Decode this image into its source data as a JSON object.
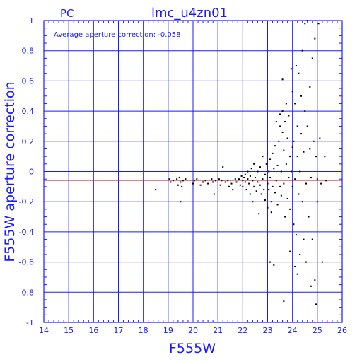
{
  "chart_data": {
    "type": "scatter",
    "title": "lmc_u4zn01",
    "corner_label": "PC",
    "annotation": "Average aperture correction:  -0.058",
    "xlabel": "F555W",
    "ylabel": "F555W aperture correction",
    "xlim": [
      14,
      26
    ],
    "ylim": [
      -1,
      1
    ],
    "x_ticks": [
      14,
      15,
      16,
      17,
      18,
      19,
      20,
      21,
      22,
      23,
      24,
      25,
      26
    ],
    "y_ticks": [
      -1,
      -0.8,
      -0.6,
      -0.4,
      -0.2,
      0,
      0.2,
      0.4,
      0.6,
      0.8,
      1
    ],
    "y_tick_labels": [
      "-1",
      "-0.8",
      "-0.6",
      "-0.4",
      "-0.2",
      "0",
      "0.2",
      "0.4",
      "0.6",
      "0.8",
      "1"
    ],
    "grid": true,
    "reference_line": {
      "y": -0.058,
      "color": "#dd0000"
    },
    "colors": {
      "axes": "#1a1aff",
      "grid": "#1a1aff",
      "points": "#000000",
      "reference": "#dd0000"
    },
    "points": [
      [
        18.5,
        -0.12
      ],
      [
        19.05,
        -0.05
      ],
      [
        19.1,
        -0.07
      ],
      [
        19.2,
        -0.06
      ],
      [
        19.35,
        -0.05
      ],
      [
        19.4,
        -0.09
      ],
      [
        19.45,
        -0.04
      ],
      [
        19.5,
        -0.07
      ],
      [
        19.5,
        -0.2
      ],
      [
        19.55,
        -0.1
      ],
      [
        19.6,
        -0.06
      ],
      [
        19.7,
        -0.05
      ],
      [
        20.0,
        -0.08
      ],
      [
        20.05,
        -0.06
      ],
      [
        20.15,
        -0.05
      ],
      [
        20.3,
        -0.09
      ],
      [
        20.4,
        -0.07
      ],
      [
        20.5,
        -0.06
      ],
      [
        20.6,
        -0.08
      ],
      [
        20.75,
        -0.05
      ],
      [
        20.8,
        -0.07
      ],
      [
        20.85,
        -0.15
      ],
      [
        20.9,
        -0.06
      ],
      [
        21.05,
        -0.05
      ],
      [
        21.1,
        -0.09
      ],
      [
        21.15,
        -0.06
      ],
      [
        21.2,
        0.03
      ],
      [
        21.3,
        -0.07
      ],
      [
        21.4,
        -0.06
      ],
      [
        21.45,
        -0.1
      ],
      [
        21.55,
        -0.08
      ],
      [
        21.6,
        -0.12
      ],
      [
        21.7,
        -0.05
      ],
      [
        21.75,
        -0.07
      ],
      [
        21.85,
        -0.05
      ],
      [
        21.9,
        -0.09
      ],
      [
        21.95,
        -0.03
      ],
      [
        22.0,
        -0.06
      ],
      [
        22.0,
        -0.1
      ],
      [
        22.05,
        -0.04
      ],
      [
        22.1,
        -0.07
      ],
      [
        22.1,
        -0.02
      ],
      [
        22.15,
        -0.12
      ],
      [
        22.2,
        -0.05
      ],
      [
        22.2,
        0.0
      ],
      [
        22.25,
        -0.08
      ],
      [
        22.3,
        -0.03
      ],
      [
        22.3,
        -0.15
      ],
      [
        22.35,
        0.02
      ],
      [
        22.4,
        -0.06
      ],
      [
        22.4,
        -0.2
      ],
      [
        22.45,
        -0.1
      ],
      [
        22.45,
        0.05
      ],
      [
        22.5,
        -0.04
      ],
      [
        22.55,
        -0.13
      ],
      [
        22.6,
        0.0
      ],
      [
        22.6,
        -0.07
      ],
      [
        22.65,
        -0.28
      ],
      [
        22.7,
        -0.09
      ],
      [
        22.7,
        0.03
      ],
      [
        22.75,
        -0.15
      ],
      [
        22.8,
        -0.05
      ],
      [
        22.8,
        0.1
      ],
      [
        22.85,
        -0.12
      ],
      [
        22.9,
        -0.02
      ],
      [
        22.9,
        -0.19
      ],
      [
        22.95,
        0.05
      ],
      [
        23.0,
        -0.08
      ],
      [
        23.0,
        -0.24
      ],
      [
        23.05,
        0.0
      ],
      [
        23.05,
        -0.12
      ],
      [
        23.1,
        -0.04
      ],
      [
        23.1,
        0.08
      ],
      [
        23.15,
        -0.2
      ],
      [
        23.15,
        -0.27
      ],
      [
        23.2,
        -0.1
      ],
      [
        23.2,
        0.12
      ],
      [
        23.25,
        0.02
      ],
      [
        23.3,
        -0.14
      ],
      [
        23.3,
        0.17
      ],
      [
        23.35,
        -0.06
      ],
      [
        23.35,
        0.33
      ],
      [
        23.4,
        0.04
      ],
      [
        23.4,
        -0.22
      ],
      [
        23.45,
        0.2
      ],
      [
        23.5,
        -0.1
      ],
      [
        23.5,
        0.3
      ],
      [
        23.5,
        0.38
      ],
      [
        23.55,
        0.0
      ],
      [
        23.55,
        -0.16
      ],
      [
        23.6,
        0.26
      ],
      [
        23.6,
        0.4
      ],
      [
        23.6,
        0.61
      ],
      [
        23.65,
        -0.08
      ],
      [
        23.65,
        0.14
      ],
      [
        23.7,
        0.33
      ],
      [
        23.7,
        -0.3
      ],
      [
        23.75,
        0.05
      ],
      [
        23.75,
        0.45
      ],
      [
        23.8,
        -0.18
      ],
      [
        23.8,
        0.22
      ],
      [
        23.85,
        0.37
      ],
      [
        23.85,
        -0.04
      ],
      [
        23.9,
        0.1
      ],
      [
        23.9,
        -0.25
      ],
      [
        23.95,
        0.68
      ],
      [
        23.95,
        0.0
      ],
      [
        24.0,
        0.16
      ],
      [
        24.0,
        -0.1
      ],
      [
        24.0,
        0.53
      ],
      [
        24.05,
        -0.35
      ],
      [
        24.05,
        0.2
      ],
      [
        24.1,
        0.45
      ],
      [
        24.1,
        -0.05
      ],
      [
        24.15,
        0.7
      ],
      [
        24.15,
        -0.42
      ],
      [
        24.2,
        0.1
      ],
      [
        24.2,
        0.3
      ],
      [
        24.25,
        -0.15
      ],
      [
        24.25,
        0.65
      ],
      [
        24.3,
        0.0
      ],
      [
        24.3,
        -0.55
      ],
      [
        24.35,
        0.5
      ],
      [
        24.35,
        0.25
      ],
      [
        24.4,
        -0.2
      ],
      [
        24.4,
        0.8
      ],
      [
        24.45,
        0.13
      ],
      [
        24.45,
        -0.45
      ],
      [
        24.5,
        0.4
      ],
      [
        24.5,
        0.98
      ],
      [
        24.55,
        -0.08
      ],
      [
        24.55,
        -0.6
      ],
      [
        24.6,
        0.3
      ],
      [
        24.6,
        1.0
      ],
      [
        24.65,
        -0.3
      ],
      [
        24.7,
        0.56
      ],
      [
        24.7,
        0.15
      ],
      [
        24.75,
        -0.04
      ],
      [
        24.8,
        0.75
      ],
      [
        24.8,
        -0.45
      ],
      [
        24.85,
        0.2
      ],
      [
        24.9,
        -0.72
      ],
      [
        24.9,
        0.88
      ],
      [
        24.95,
        0.1
      ],
      [
        25.0,
        -0.05
      ],
      [
        25.0,
        -0.2
      ],
      [
        25.05,
        0.98
      ],
      [
        25.1,
        0.22
      ],
      [
        25.15,
        -0.08
      ],
      [
        25.2,
        -0.6
      ],
      [
        25.3,
        0.1
      ],
      [
        25.35,
        -0.06
      ],
      [
        23.1,
        -0.6
      ],
      [
        23.25,
        -0.62
      ],
      [
        23.65,
        -0.86
      ],
      [
        23.9,
        -0.53
      ],
      [
        24.1,
        -0.63
      ],
      [
        24.2,
        -0.68
      ],
      [
        24.75,
        -0.76
      ],
      [
        24.95,
        -0.88
      ]
    ]
  }
}
